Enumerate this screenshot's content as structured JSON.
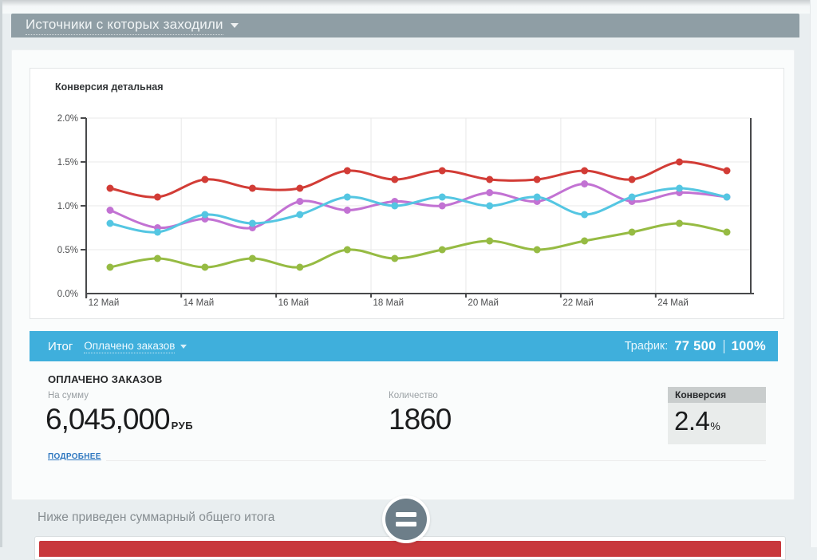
{
  "header": {
    "title": "Источники с которых заходили"
  },
  "chart_data": {
    "type": "line",
    "title": "Конверсия детальная",
    "x": [
      12,
      13,
      14,
      15,
      16,
      17,
      18,
      19,
      20,
      21,
      22,
      23,
      24,
      25
    ],
    "x_tick_days": [
      12,
      14,
      16,
      18,
      20,
      22,
      24
    ],
    "x_tick_labels": [
      "12 Май",
      "14 Май",
      "16 Май",
      "18 Май",
      "20 Май",
      "22 Май",
      "24 Май"
    ],
    "y_ticks": [
      0,
      0.5,
      1.0,
      1.5,
      2.0
    ],
    "y_tick_labels": [
      "0.0%",
      "0.5%",
      "1.0%",
      "1.5%",
      "2.0%"
    ],
    "ylim": [
      0,
      2.0
    ],
    "unit": "%",
    "grid": true,
    "legend": "none",
    "series": [
      {
        "name": "red",
        "color": "#d23c36",
        "values": [
          1.2,
          1.1,
          1.3,
          1.2,
          1.2,
          1.4,
          1.3,
          1.4,
          1.3,
          1.3,
          1.4,
          1.3,
          1.5,
          1.4
        ]
      },
      {
        "name": "purple",
        "color": "#c272d3",
        "values": [
          0.95,
          0.75,
          0.85,
          0.75,
          1.05,
          0.95,
          1.05,
          1.0,
          1.15,
          1.05,
          1.25,
          1.05,
          1.15,
          1.1
        ]
      },
      {
        "name": "cyan",
        "color": "#54c6e2",
        "values": [
          0.8,
          0.7,
          0.9,
          0.8,
          0.9,
          1.1,
          1.0,
          1.1,
          1.0,
          1.1,
          0.9,
          1.1,
          1.2,
          1.1
        ]
      },
      {
        "name": "green",
        "color": "#96bb43",
        "values": [
          0.3,
          0.4,
          0.3,
          0.4,
          0.3,
          0.5,
          0.4,
          0.5,
          0.6,
          0.5,
          0.6,
          0.7,
          0.8,
          0.7
        ]
      }
    ]
  },
  "summary_bar": {
    "label": "Итог",
    "selected_metric": "Оплачено заказов",
    "traffic_label": "Трафик:",
    "traffic_value": "77 500",
    "traffic_percent": "100%"
  },
  "totals": {
    "heading": "ОПЛАЧЕНО ЗАКАЗОВ",
    "sum_label": "На сумму",
    "sum_value": "6,045,000",
    "sum_currency": "РУБ",
    "count_label": "Количество",
    "count_value": "1860",
    "conversion_label": "Конверсия",
    "conversion_value": "2.4",
    "conversion_unit": "%",
    "details_link": "ПОДРОБНЕЕ"
  },
  "footer_note": "Ниже приведен суммарный общего итога",
  "icons": {
    "caret-down": "▾",
    "equals": "="
  },
  "colors": {
    "page_bg": "#e9eef0",
    "header_bar": "#8f9ea5",
    "accent_blue": "#3fafdc",
    "bottom_bar_red": "#c8383c",
    "equals_circle": "#6d7e89",
    "conversion_box_head": "#c9cdcd",
    "conversion_box_body": "#e9eceb",
    "link_blue": "#2f78c0"
  }
}
